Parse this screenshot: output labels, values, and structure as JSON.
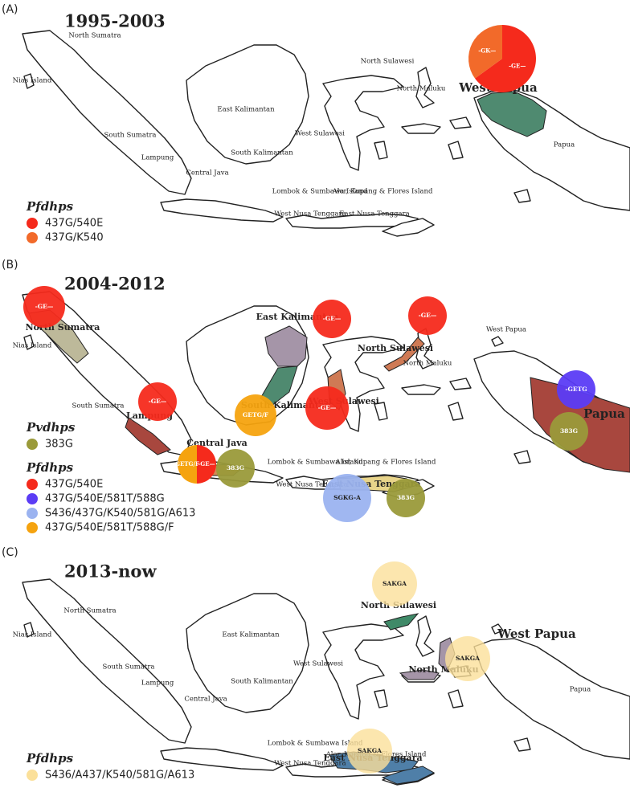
{
  "panels": [
    {
      "tag": "(A)",
      "title": "1995-2003",
      "places": [
        "North Sumatra",
        "Nias Island",
        "South Sumatra",
        "Lampung",
        "Central Java",
        "East Kalimantan",
        "South Kalimantan",
        "West Sulawesi",
        "North Sulawesi",
        "North Maluku",
        "West Papua",
        "Papua",
        "Lombok & Sumbawa Island",
        "Alor, Kupang & Flores Island",
        "West Nusa Tenggara",
        "East Nusa Tenggara"
      ],
      "markers": [
        {
          "segments": [
            {
              "label": "-GE—",
              "color": "#f52a1c",
              "share": 65
            },
            {
              "label": "-GK—",
              "color": "#f26a2a",
              "share": 35
            }
          ]
        }
      ],
      "legends": [
        {
          "title": "Pfdhps",
          "items": [
            {
              "label": "437G/540E",
              "color": "#f52a1c"
            },
            {
              "label": "437G/K540",
              "color": "#f26a2a"
            }
          ]
        }
      ]
    },
    {
      "tag": "(B)",
      "title": "2004-2012",
      "places": [
        "North Sumatra",
        "Nias Island",
        "South Sumatra",
        "Lampung",
        "Central Java",
        "East Kalimantan",
        "South Kalimantan",
        "West Sulawesi",
        "North Sulawesi",
        "North Maluku",
        "West Papua",
        "Papua",
        "Lombok & Sumbawa Island",
        "Alor, Kupang & Flores Island",
        "West Nusa Tenggara",
        "East Nusa Tenggara"
      ],
      "markers": [
        {
          "label": "-GE—",
          "color": "#f52a1c"
        },
        {
          "label": "-GE—",
          "color": "#f52a1c"
        },
        {
          "label": "-GE—",
          "color": "#f52a1c"
        },
        {
          "label": "-GE—",
          "color": "#f52a1c"
        },
        {
          "label": "-GE—",
          "color": "#f52a1c"
        },
        {
          "label": "GETG/F",
          "color": "#f5a30f"
        },
        {
          "label": "-GETG",
          "color": "#5b3cf5"
        },
        {
          "label": "383G",
          "color": "#9a9a3a"
        },
        {
          "segments": [
            {
              "label": "-GE—",
              "color": "#f52a1c",
              "share": 50
            },
            {
              "label": "GETG/F",
              "color": "#f5a30f",
              "share": 50
            }
          ]
        },
        {
          "label": "383G",
          "color": "#9a9a3a"
        },
        {
          "label": "SGKG-A",
          "color": "#9bb3f0"
        },
        {
          "label": "383G",
          "color": "#9a9a3a"
        }
      ],
      "legends": [
        {
          "title": "Pvdhps",
          "items": [
            {
              "label": "383G",
              "color": "#9a9a3a"
            }
          ]
        },
        {
          "title": "Pfdhps",
          "items": [
            {
              "label": "437G/540E",
              "color": "#f52a1c"
            },
            {
              "label": "437G/540E/581T/588G",
              "color": "#5b3cf5"
            },
            {
              "label": "S436/437G/K540/581G/A613",
              "color": "#9bb3f0"
            },
            {
              "label": "437G/540E/581T/588G/F",
              "color": "#f5a30f"
            }
          ]
        }
      ]
    },
    {
      "tag": "(C)",
      "title": "2013-now",
      "places": [
        "North Sumatra",
        "Nias Island",
        "South Sumatra",
        "Lampung",
        "Central Java",
        "East Kalimantan",
        "South Kalimantan",
        "West Sulawesi",
        "North Sulawesi",
        "North Maluku",
        "West Papua",
        "Papua",
        "Lombok & Sumbawa Island",
        "Alor, Kupang & Flores Island",
        "West Nusa Tenggara",
        "East Nusa Tenggara"
      ],
      "markers": [
        {
          "label": "SAKGA",
          "color": "#fbe09a"
        },
        {
          "label": "SAKGA",
          "color": "#fbe09a"
        },
        {
          "label": "SAKGA",
          "color": "#fbe09a"
        }
      ],
      "legends": [
        {
          "title": "Pfdhps",
          "items": [
            {
              "label": "S436/A437/K540/581G/A613",
              "color": "#fbe09a"
            }
          ]
        }
      ]
    }
  ]
}
